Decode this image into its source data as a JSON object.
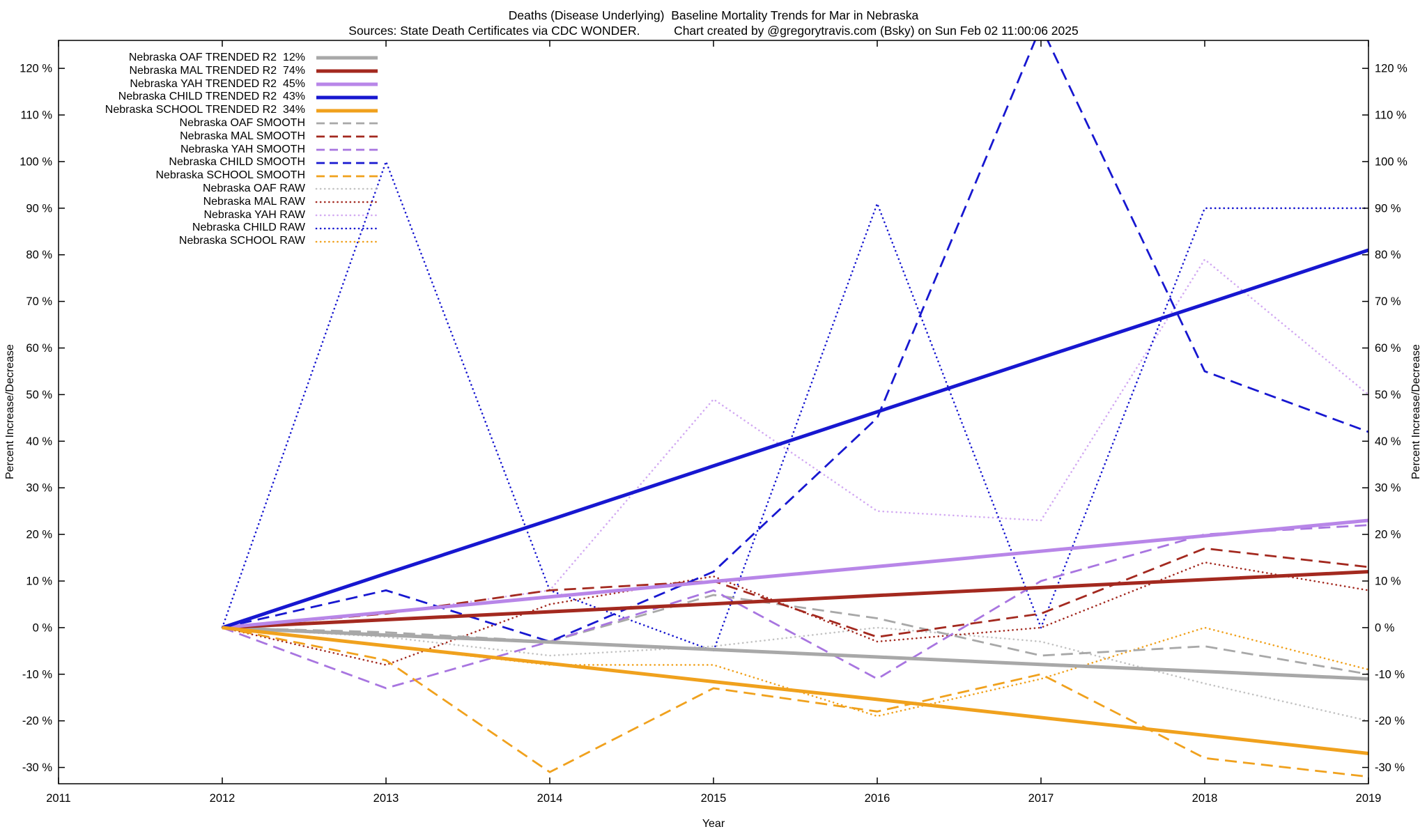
{
  "chart_data": {
    "type": "line",
    "title": "Deaths (Disease Underlying)  Baseline Mortality Trends for Mar in Nebraska",
    "subtitle": "Sources: State Death Certificates via CDC WONDER.          Chart created by @gregorytravis.com (Bsky) on Sun Feb 02 11:00:06 2025",
    "xlabel": "Year",
    "ylabel": "Percent Increase/Decrease",
    "xlim": [
      2011,
      2019
    ],
    "ylim": [
      -33.5,
      126
    ],
    "xticks": [
      2011,
      2012,
      2013,
      2014,
      2015,
      2016,
      2017,
      2018,
      2019
    ],
    "yticks": [
      -30,
      -20,
      -10,
      0,
      10,
      20,
      30,
      40,
      50,
      60,
      70,
      80,
      90,
      100,
      110,
      120
    ],
    "ytick_suffix": " %",
    "grid": false,
    "legend_position": "top-left",
    "x": [
      2012,
      2013,
      2014,
      2015,
      2016,
      2017,
      2018,
      2019
    ],
    "series": [
      {
        "name": "Nebraska OAF TRENDED R2  12%",
        "style": "trended",
        "color": "#a8a8a8",
        "values": [
          0,
          -1.6,
          -3.1,
          -4.7,
          -6.3,
          -7.9,
          -9.4,
          -11
        ]
      },
      {
        "name": "Nebraska MAL TRENDED R2  74%",
        "style": "trended",
        "color": "#a3291f",
        "values": [
          0,
          1.7,
          3.4,
          5.1,
          6.9,
          8.6,
          10.3,
          12
        ]
      },
      {
        "name": "Nebraska YAH TRENDED R2  45%",
        "style": "trended",
        "color": "#b886e8",
        "values": [
          0,
          3.3,
          6.6,
          9.9,
          13.1,
          16.4,
          19.7,
          23
        ]
      },
      {
        "name": "Nebraska CHILD TRENDED R2  43%",
        "style": "trended",
        "color": "#1717d0",
        "values": [
          0,
          11.6,
          23.1,
          34.7,
          46.3,
          57.9,
          69.4,
          81
        ]
      },
      {
        "name": "Nebraska SCHOOL TRENDED R2  34%",
        "style": "trended",
        "color": "#f0a11d",
        "values": [
          0,
          -3.9,
          -7.7,
          -11.6,
          -15.4,
          -19.3,
          -23.1,
          -27
        ]
      },
      {
        "name": "Nebraska OAF SMOOTH",
        "style": "smooth",
        "color": "#a8a8a8",
        "values": [
          0,
          -1,
          -3,
          7,
          2,
          -6,
          -4,
          -10
        ]
      },
      {
        "name": "Nebraska MAL SMOOTH",
        "style": "smooth",
        "color": "#a3291f",
        "values": [
          0,
          3,
          8,
          10,
          -2,
          3,
          17,
          13
        ]
      },
      {
        "name": "Nebraska YAH SMOOTH",
        "style": "smooth",
        "color": "#a875e0",
        "values": [
          0,
          -13,
          -3,
          8,
          -11,
          10,
          20,
          22
        ]
      },
      {
        "name": "Nebraska CHILD SMOOTH",
        "style": "smooth",
        "color": "#1717d0",
        "values": [
          0,
          8,
          -3,
          12,
          45,
          129,
          55,
          42
        ]
      },
      {
        "name": "Nebraska SCHOOL SMOOTH",
        "style": "smooth",
        "color": "#f0a11d",
        "values": [
          0,
          -7,
          -31,
          -13,
          -18,
          -10,
          -28,
          -32
        ]
      },
      {
        "name": "Nebraska OAF RAW",
        "style": "raw",
        "color": "#c2c2c2",
        "values": [
          0,
          -2,
          -6,
          -4,
          0,
          -3,
          -12,
          -20
        ]
      },
      {
        "name": "Nebraska MAL RAW",
        "style": "raw",
        "color": "#a3291f",
        "values": [
          0,
          -8,
          5,
          11,
          -3,
          0,
          14,
          8
        ]
      },
      {
        "name": "Nebraska YAH RAW",
        "style": "raw",
        "color": "#d2a9f2",
        "values": [
          0,
          3,
          8,
          49,
          25,
          23,
          79,
          50
        ]
      },
      {
        "name": "Nebraska CHILD RAW",
        "style": "raw",
        "color": "#1717d0",
        "values": [
          0,
          100,
          8,
          -5,
          91,
          0,
          90,
          90
        ]
      },
      {
        "name": "Nebraska SCHOOL RAW",
        "style": "raw",
        "color": "#f0a11d",
        "values": [
          0,
          -4,
          -8,
          -8,
          -19,
          -11,
          0,
          -9
        ]
      }
    ]
  }
}
